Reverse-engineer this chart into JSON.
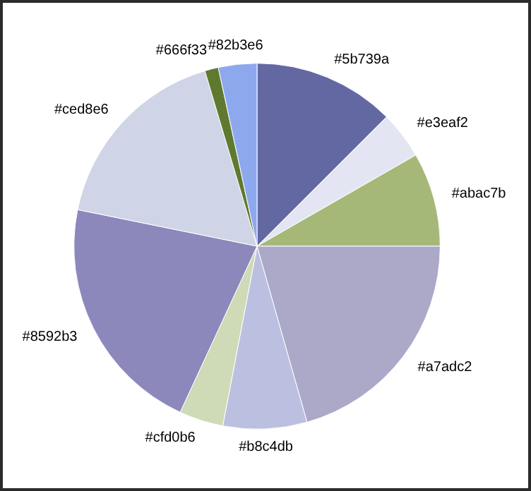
{
  "chart_data": {
    "type": "pie",
    "categories": [
      "#5b739a",
      "#e3eaf2",
      "#abac7b",
      "#a7adc2",
      "#b8c4db",
      "#cfd0b6",
      "#8592b3",
      "#ced8e6",
      "#666f33",
      "#82b3e6"
    ],
    "values": [
      12.5,
      4.2,
      8.3,
      20.6,
      7.4,
      3.9,
      21.3,
      17.2,
      1.2,
      3.4
    ],
    "colors": [
      "#6468a2",
      "#e3e6f2",
      "#a6b878",
      "#aca8c8",
      "#bcc0e0",
      "#cfdab6",
      "#8c88bc",
      "#cfd4e6",
      "#5f7a30",
      "#8ea8ee"
    ]
  }
}
